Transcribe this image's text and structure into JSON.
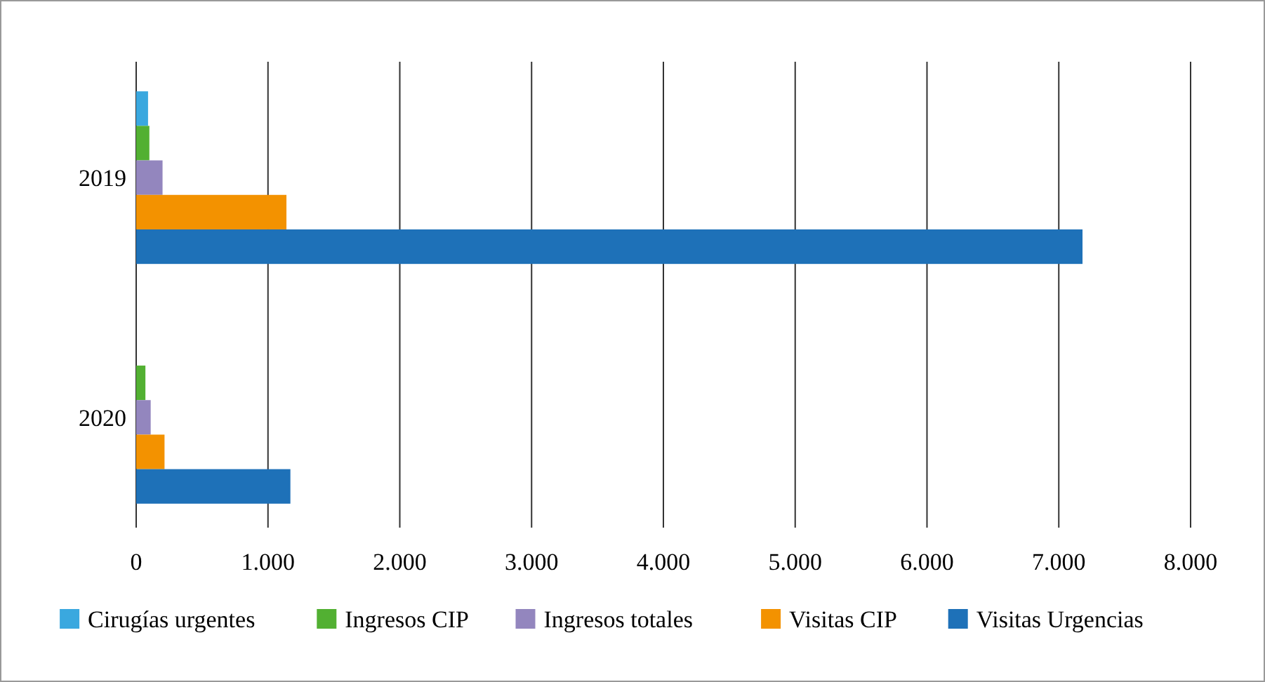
{
  "chart_data": {
    "type": "bar",
    "orientation": "horizontal",
    "categories": [
      "2019",
      "2020"
    ],
    "series": [
      {
        "name": "Cirugías urgentes",
        "color": "#3aa8df",
        "values": [
          90,
          null
        ]
      },
      {
        "name": "Ingresos CIP",
        "color": "#52b032",
        "values": [
          100,
          70
        ]
      },
      {
        "name": "Ingresos totales",
        "color": "#9386be",
        "values": [
          200,
          110
        ]
      },
      {
        "name": "Visitas CIP",
        "color": "#f39200",
        "values": [
          1140,
          215
        ]
      },
      {
        "name": "Visitas Urgencias",
        "color": "#1e71b8",
        "values": [
          7180,
          1170
        ]
      }
    ],
    "xlim": [
      0,
      8000
    ],
    "xticks": [
      {
        "value": 0,
        "label": "0"
      },
      {
        "value": 1000,
        "label": "1.000"
      },
      {
        "value": 2000,
        "label": "2.000"
      },
      {
        "value": 3000,
        "label": "3.000"
      },
      {
        "value": 4000,
        "label": "4.000"
      },
      {
        "value": 5000,
        "label": "5.000"
      },
      {
        "value": 6000,
        "label": "6.000"
      },
      {
        "value": 7000,
        "label": "7.000"
      },
      {
        "value": 8000,
        "label": "8.000"
      }
    ],
    "grid": "x",
    "legend": "bottom"
  }
}
